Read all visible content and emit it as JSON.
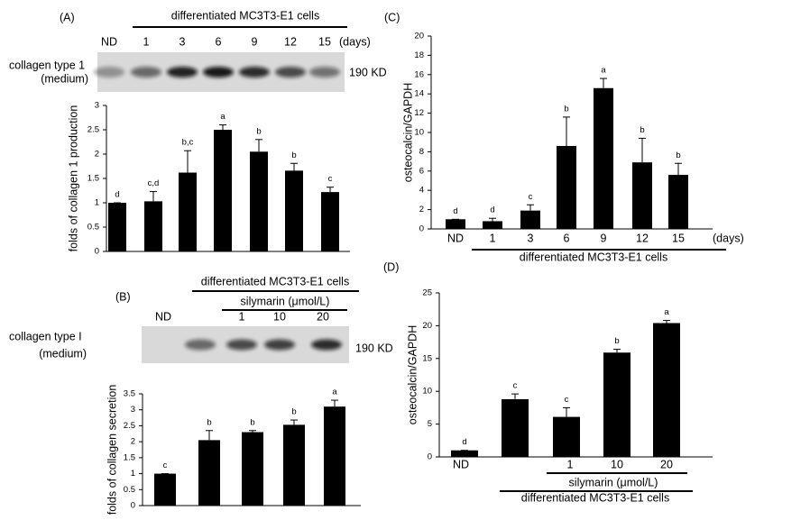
{
  "chart_data": [
    {
      "type": "bar",
      "panel": "(A)",
      "cells_label": "differentiated MC3T3-E1 cells",
      "x_unit": "(days)",
      "blot_label": [
        "collagen type 1",
        "(medium)"
      ],
      "blot_size": "190 KD",
      "y_label": "folds of collagen 1 production",
      "color": "#000000",
      "categories": [
        "ND",
        "1",
        "3",
        "6",
        "9",
        "12",
        "15"
      ],
      "values": [
        1.0,
        1.03,
        1.62,
        2.5,
        2.05,
        1.66,
        1.22
      ],
      "errors": [
        0,
        0.2,
        0.45,
        0.1,
        0.25,
        0.15,
        0.1
      ],
      "letters": [
        "d",
        "c,d",
        "b,c",
        "a",
        "b",
        "b",
        "c"
      ],
      "ylim": [
        0,
        3
      ],
      "yticks": [
        0,
        0.5,
        1,
        1.5,
        2,
        2.5,
        3
      ]
    },
    {
      "type": "bar",
      "panel": "(C)",
      "cells_label": "differentiated MC3T3-E1 cells",
      "x_unit": "(days)",
      "y_label": "osteocalcin/GAPDH",
      "color": "#000000",
      "categories": [
        "ND",
        "1",
        "3",
        "6",
        "9",
        "12",
        "15"
      ],
      "values": [
        1.0,
        0.8,
        1.9,
        8.6,
        14.6,
        6.9,
        5.6
      ],
      "errors": [
        0,
        0.3,
        0.6,
        3.0,
        1.0,
        2.5,
        1.2
      ],
      "letters": [
        "d",
        "d",
        "c",
        "b",
        "a",
        "b",
        "b"
      ],
      "ylim": [
        0,
        20
      ],
      "yticks": [
        0,
        2,
        4,
        6,
        8,
        10,
        12,
        14,
        16,
        18,
        20
      ]
    },
    {
      "type": "bar",
      "panel": "(B)",
      "cells_label": "differentiated MC3T3-E1 cells",
      "treatment_label": "silymarin (μmol/L)",
      "blot_label": [
        "collagen type I",
        "(medium)"
      ],
      "blot_size": "190 KD",
      "y_label": "folds of collagen secretion",
      "color": "#000000",
      "categories": [
        "ND",
        null,
        "1",
        "10",
        "20"
      ],
      "values": [
        1.0,
        2.05,
        2.3,
        2.53,
        3.1
      ],
      "errors": [
        0,
        0.3,
        0.05,
        0.15,
        0.2
      ],
      "letters": [
        "c",
        "b",
        "b",
        "b",
        "a"
      ],
      "ylim": [
        0,
        3.5
      ],
      "yticks": [
        0,
        0.5,
        1,
        1.5,
        2,
        2.5,
        3,
        3.5
      ]
    },
    {
      "type": "bar",
      "panel": "(D)",
      "cells_label": "differentiated MC3T3-E1 cells",
      "treatment_label": "silymarin (μmol/L)",
      "y_label": "osteocalcin/GAPDH",
      "color": "#000000",
      "categories": [
        "ND",
        null,
        "1",
        "10",
        "20"
      ],
      "values": [
        1.0,
        8.8,
        6.1,
        15.9,
        20.4
      ],
      "errors": [
        0,
        0.8,
        1.4,
        0.5,
        0.4
      ],
      "letters": [
        "d",
        "c",
        "c",
        "b",
        "a"
      ],
      "ylim": [
        0,
        25
      ],
      "yticks": [
        0,
        5,
        10,
        15,
        20,
        25
      ]
    }
  ]
}
